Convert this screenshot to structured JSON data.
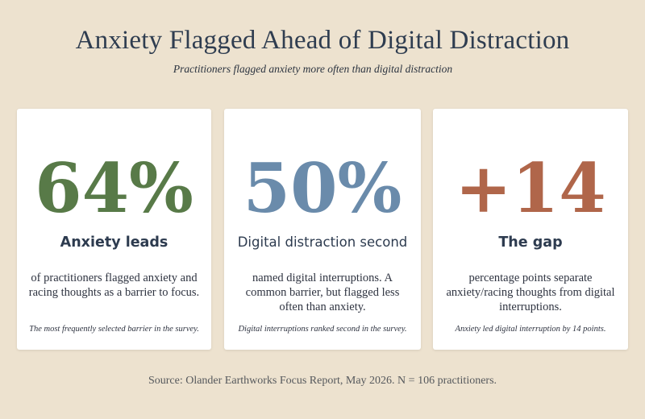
{
  "title": "Anxiety Flagged Ahead of Digital Distraction",
  "subtitle": "Practitioners flagged anxiety more often than digital distraction",
  "colors": {
    "green": "#587a48",
    "blue": "#6a8bab",
    "rust": "#b0664a",
    "background": "#ede2cf"
  },
  "cards": [
    {
      "stat": "64%",
      "heading": "Anxiety leads",
      "body": "of practitioners flagged anxiety and racing thoughts as a barrier to focus.",
      "note": "The most frequently selected barrier in the survey."
    },
    {
      "stat": "50%",
      "heading": "Digital distraction second",
      "body": "named digital interruptions. A common barrier, but flagged less often than anxiety.",
      "note": "Digital interruptions ranked second in the survey."
    },
    {
      "stat": "+14",
      "heading": "The gap",
      "body": "percentage points separate anxiety/racing thoughts from digital interruptions.",
      "note": "Anxiety led digital interruption by 14 points."
    }
  ],
  "source": "Source: Olander Earthworks Focus Report, May 2026. N = 106 practitioners."
}
